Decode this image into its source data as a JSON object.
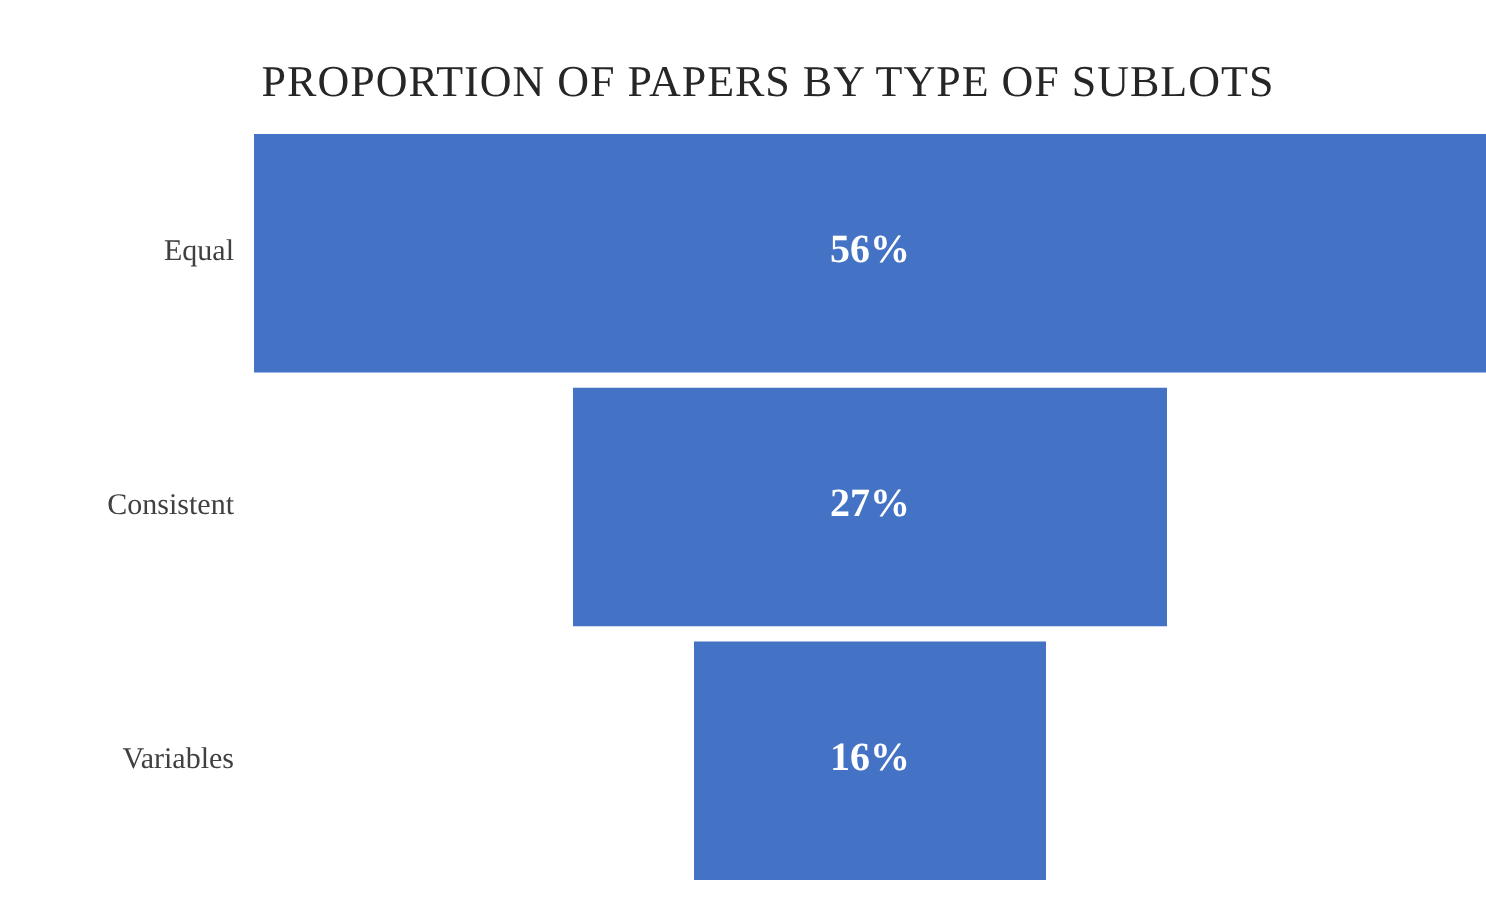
{
  "chart_data": {
    "type": "other",
    "title": "PROPORTION OF PAPERS BY TYPE OF SUBLOTS",
    "categories": [
      "Equal",
      "Consistent",
      "Variables"
    ],
    "values": [
      56,
      27,
      16
    ],
    "value_labels": [
      "56%",
      "27%",
      "16%"
    ],
    "color": "#4472c4"
  }
}
